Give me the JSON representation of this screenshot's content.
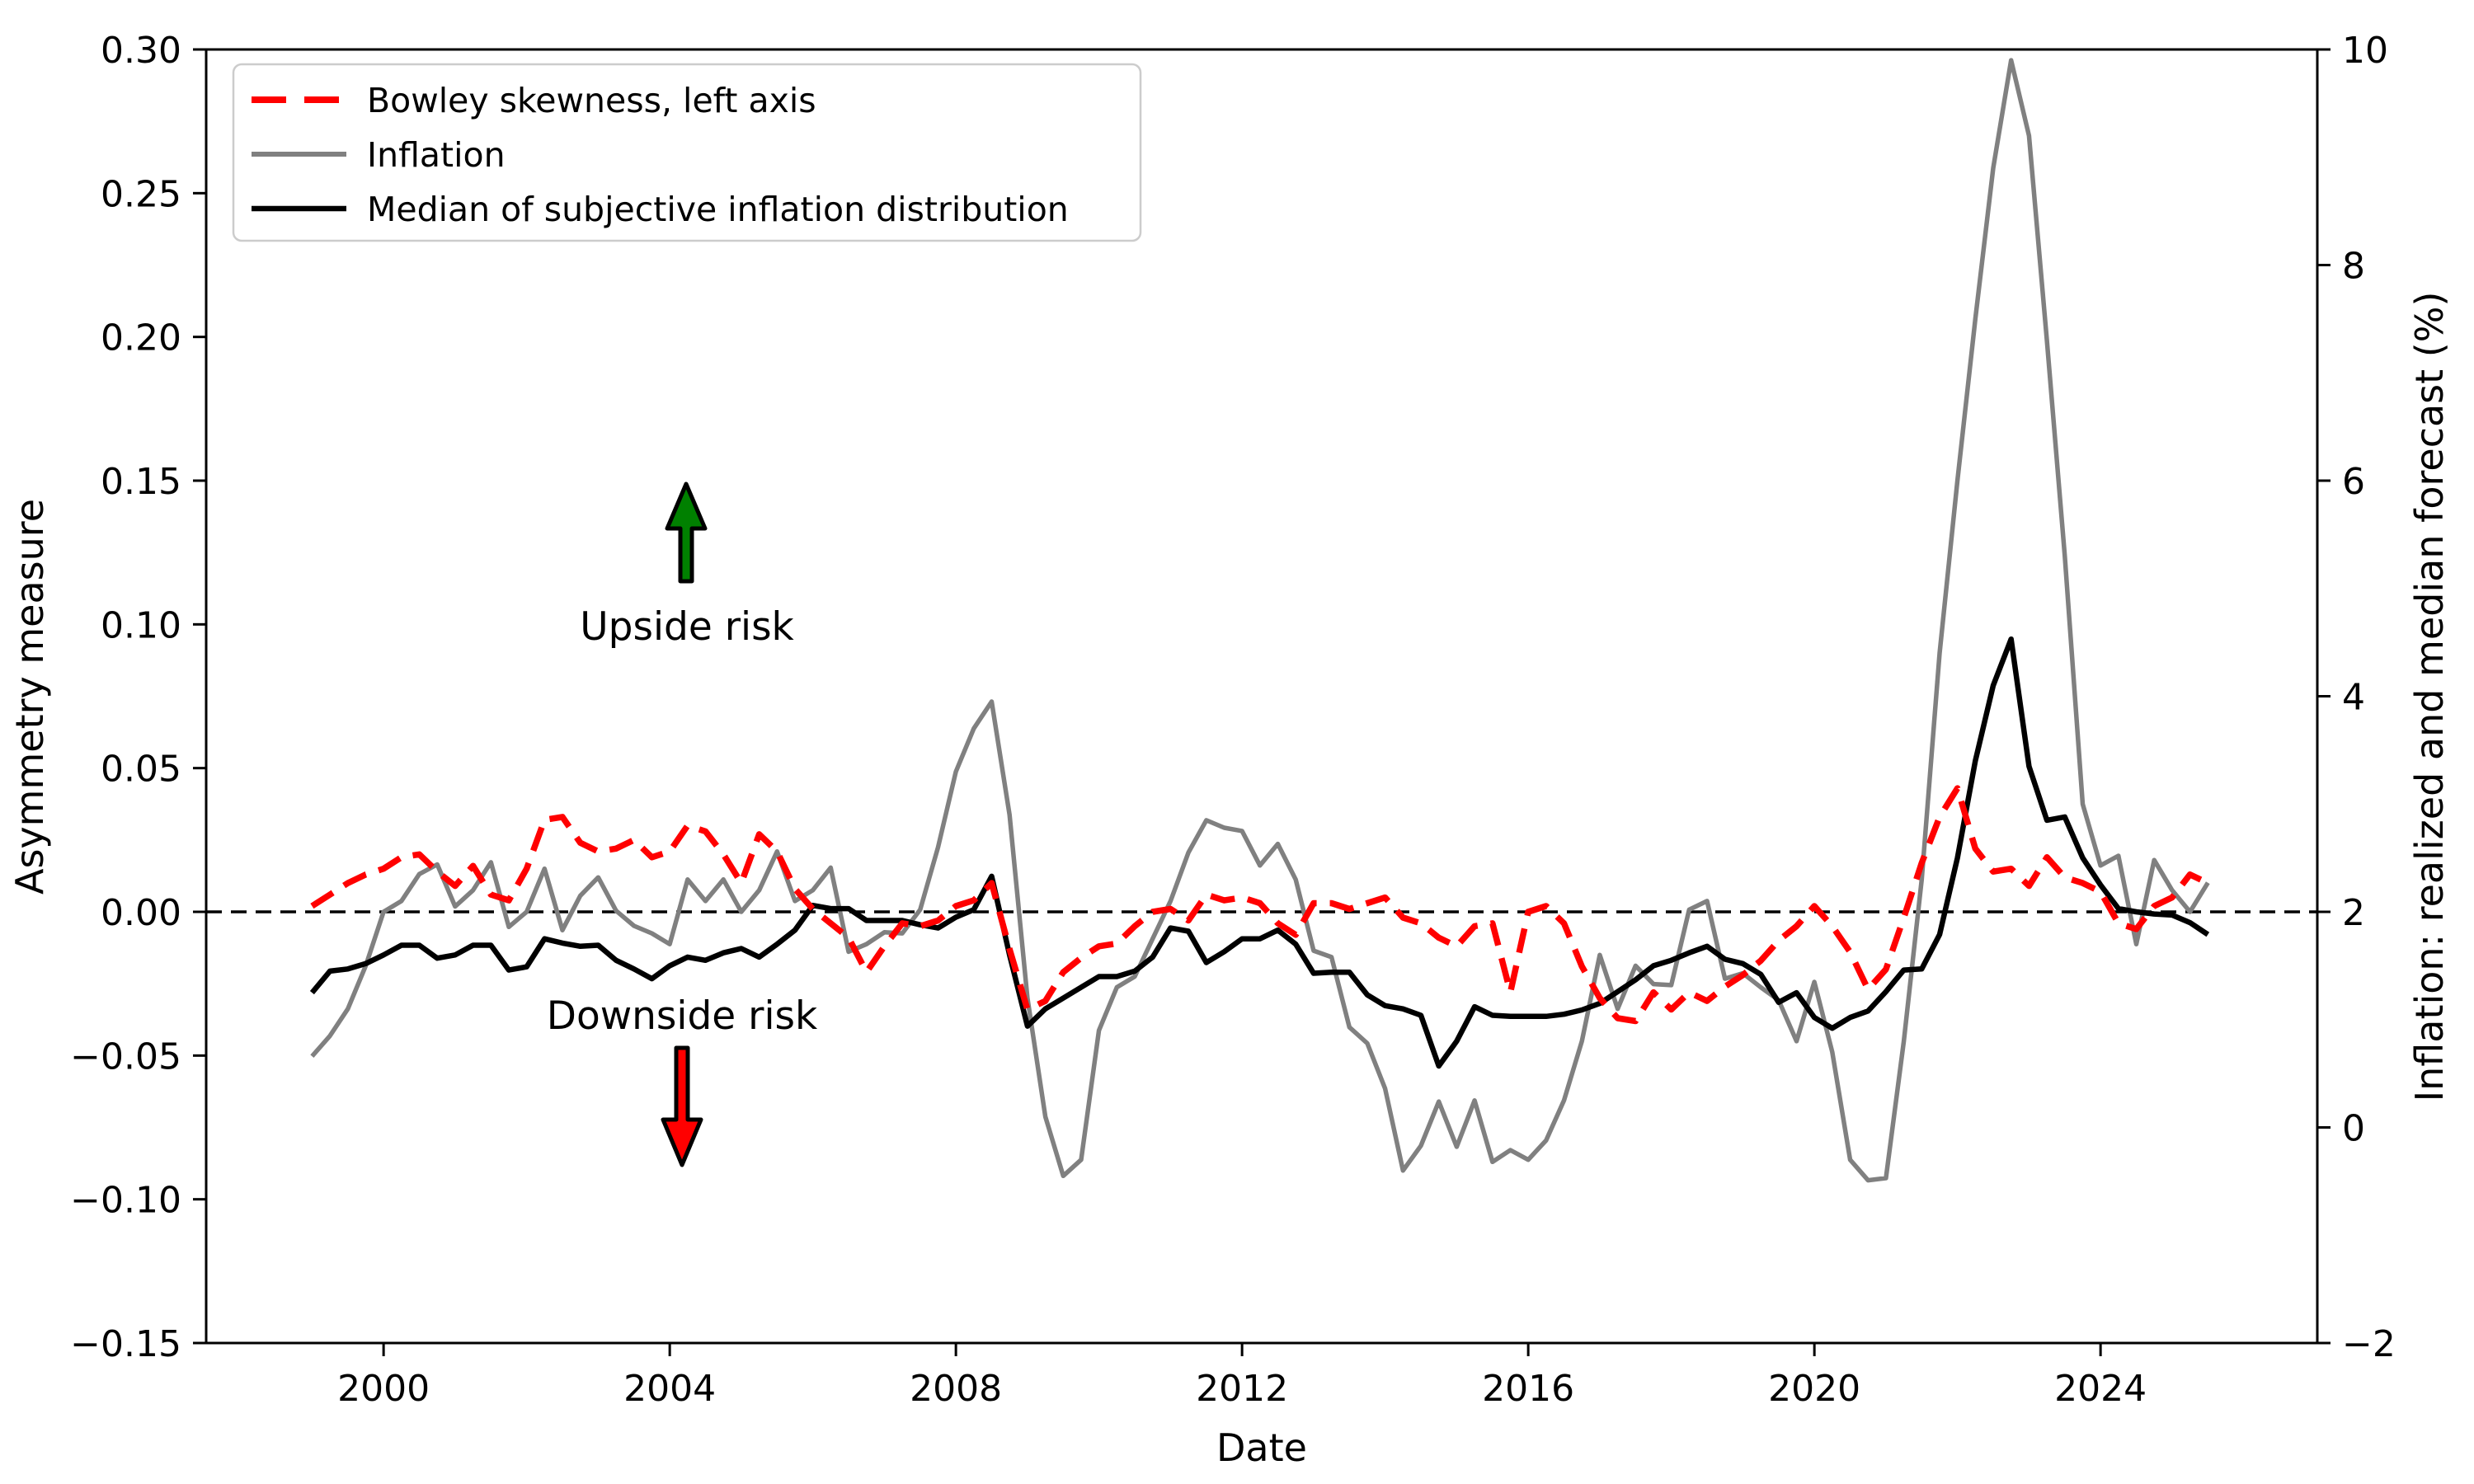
{
  "chart_data": {
    "type": "line",
    "title": "",
    "xlabel": "Date",
    "ylabel_left": "Asymmetry measure",
    "ylabel_right": "Inflation: realized and median forecast (%)",
    "x_start": 1999.0,
    "x_step": 0.25,
    "x_range": [
      1997.52,
      2027.03
    ],
    "x_ticks": [
      2000,
      2004,
      2008,
      2012,
      2016,
      2020,
      2024
    ],
    "yleft": {
      "range": [
        -0.15,
        0.3
      ],
      "ticks": [
        0.3,
        0.25,
        0.2,
        0.15,
        0.1,
        0.05,
        0.0,
        -0.05,
        -0.1,
        -0.15
      ]
    },
    "yright": {
      "range": [
        -2,
        10
      ],
      "ticks": [
        10,
        8,
        6,
        4,
        2,
        0,
        -2
      ]
    },
    "zero_line_left_value": 0.0,
    "grid": false,
    "legend_position": "upper-left",
    "series": [
      {
        "name": "Bowley skewness, left axis",
        "axis": "left",
        "color": "#ff0000",
        "style": "dashed",
        "values": [
          0.002,
          0.006,
          0.01,
          0.013,
          0.015,
          0.019,
          0.02,
          0.014,
          0.009,
          0.016,
          0.006,
          0.004,
          0.015,
          0.032,
          0.033,
          0.024,
          0.021,
          0.022,
          0.025,
          0.019,
          0.021,
          0.03,
          0.028,
          0.02,
          0.01,
          0.027,
          0.021,
          0.008,
          0.001,
          -0.004,
          -0.009,
          -0.021,
          -0.012,
          -0.004,
          -0.005,
          -0.003,
          0.002,
          0.004,
          0.01,
          -0.013,
          -0.034,
          -0.031,
          -0.021,
          -0.016,
          -0.012,
          -0.011,
          -0.005,
          0.0,
          0.001,
          -0.003,
          0.006,
          0.004,
          0.005,
          0.003,
          -0.004,
          -0.008,
          0.003,
          0.003,
          0.001,
          0.003,
          0.005,
          -0.002,
          -0.004,
          -0.009,
          -0.012,
          -0.005,
          -0.004,
          -0.028,
          0.0,
          0.002,
          -0.004,
          -0.019,
          -0.03,
          -0.037,
          -0.038,
          -0.028,
          -0.034,
          -0.028,
          -0.031,
          -0.026,
          -0.022,
          -0.017,
          -0.01,
          -0.005,
          0.002,
          -0.005,
          -0.014,
          -0.027,
          -0.02,
          -0.002,
          0.017,
          0.033,
          0.043,
          0.022,
          0.014,
          0.015,
          0.009,
          0.019,
          0.012,
          0.01,
          0.007,
          -0.004,
          -0.006,
          0.002,
          0.005,
          0.013,
          0.01
        ]
      },
      {
        "name": "Inflation",
        "axis": "right",
        "color": "#808080",
        "style": "solid",
        "values": [
          0.66,
          0.85,
          1.1,
          1.5,
          2.0,
          2.1,
          2.35,
          2.44,
          2.05,
          2.2,
          2.46,
          1.86,
          2.0,
          2.4,
          1.83,
          2.15,
          2.32,
          2.01,
          1.87,
          1.8,
          1.7,
          2.3,
          2.1,
          2.3,
          2.0,
          2.2,
          2.56,
          2.1,
          2.2,
          2.41,
          1.63,
          1.7,
          1.81,
          1.8,
          2.02,
          2.6,
          3.3,
          3.7,
          3.95,
          2.9,
          1.2,
          0.1,
          -0.45,
          -0.3,
          0.9,
          1.3,
          1.4,
          1.75,
          2.1,
          2.55,
          2.85,
          2.78,
          2.75,
          2.43,
          2.63,
          2.3,
          1.64,
          1.58,
          0.93,
          0.78,
          0.36,
          -0.4,
          -0.17,
          0.24,
          -0.18,
          0.25,
          -0.32,
          -0.21,
          -0.3,
          -0.12,
          0.25,
          0.8,
          1.6,
          1.1,
          1.5,
          1.33,
          1.32,
          2.02,
          2.1,
          1.38,
          1.43,
          1.3,
          1.18,
          0.8,
          1.35,
          0.7,
          -0.3,
          -0.49,
          -0.47,
          0.8,
          2.3,
          4.4,
          6.0,
          7.5,
          8.9,
          9.9,
          9.2,
          7.3,
          5.3,
          3.0,
          2.43,
          2.52,
          1.7,
          2.48,
          2.2,
          2.0,
          2.27
        ]
      },
      {
        "name": "Median of subjective inflation distribution",
        "axis": "right",
        "color": "#000000",
        "style": "solid",
        "values": [
          1.25,
          1.45,
          1.47,
          1.52,
          1.6,
          1.69,
          1.69,
          1.57,
          1.6,
          1.69,
          1.69,
          1.46,
          1.49,
          1.75,
          1.71,
          1.68,
          1.69,
          1.55,
          1.47,
          1.38,
          1.5,
          1.58,
          1.55,
          1.62,
          1.66,
          1.58,
          1.7,
          1.83,
          2.06,
          2.03,
          2.03,
          1.92,
          1.92,
          1.92,
          1.88,
          1.85,
          1.95,
          2.02,
          2.33,
          1.6,
          0.94,
          1.1,
          1.2,
          1.3,
          1.4,
          1.4,
          1.45,
          1.58,
          1.85,
          1.82,
          1.53,
          1.63,
          1.75,
          1.75,
          1.83,
          1.7,
          1.43,
          1.44,
          1.44,
          1.23,
          1.13,
          1.1,
          1.04,
          0.57,
          0.8,
          1.12,
          1.04,
          1.03,
          1.03,
          1.03,
          1.05,
          1.09,
          1.15,
          1.26,
          1.37,
          1.5,
          1.55,
          1.62,
          1.68,
          1.56,
          1.52,
          1.42,
          1.16,
          1.25,
          1.02,
          0.92,
          1.02,
          1.08,
          1.26,
          1.46,
          1.47,
          1.79,
          2.5,
          3.4,
          4.1,
          4.53,
          3.35,
          2.85,
          2.88,
          2.5,
          2.25,
          2.03,
          2.0,
          1.98,
          1.97,
          1.9,
          1.79
        ]
      }
    ],
    "annotations": [
      {
        "text": "Upside risk",
        "color": "#008000",
        "arrow": "up",
        "arrow_color": "#008000"
      },
      {
        "text": "Downside risk",
        "color": "#ff0000",
        "arrow": "down",
        "arrow_color": "#ff0000"
      }
    ]
  }
}
